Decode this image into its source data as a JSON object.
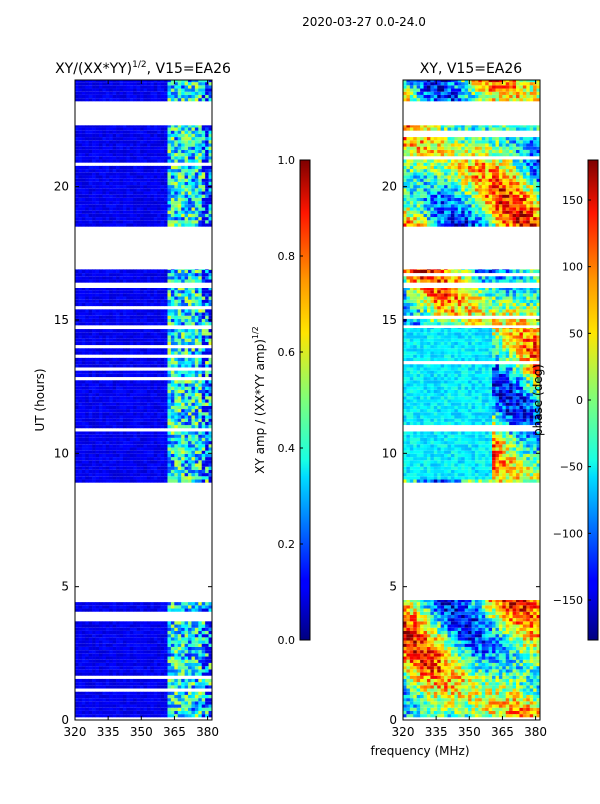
{
  "figure": {
    "suptitle": "2020-03-27 0.0-24.0",
    "xlabel": "frequency (MHz)"
  },
  "chart_data": [
    {
      "type": "heatmap",
      "title_main": "XY/(XX*YY)",
      "title_sup": "1/2",
      "title_tail": ", V15=EA26",
      "ylabel": "UT (hours)",
      "xlim": [
        320,
        382
      ],
      "ylim": [
        0,
        24
      ],
      "xticks": [
        "320",
        "335",
        "350",
        "365",
        "380"
      ],
      "xtick_values": [
        320,
        335,
        350,
        365,
        380
      ],
      "yticks": [
        "0",
        "5",
        "10",
        "15",
        "20"
      ],
      "ytick_values": [
        0,
        5,
        10,
        15,
        20
      ],
      "data_rows_ut": [
        [
          0.1,
          4.5
        ],
        [
          8.9,
          14.7
        ],
        [
          14.8,
          16.2
        ],
        [
          16.4,
          16.9
        ],
        [
          18.5,
          22.3
        ],
        [
          23.2,
          24.0
        ]
      ],
      "colorbar": {
        "label_main": "XY amp / (XX*YY amp)",
        "label_sup": "1/2",
        "range": [
          0.0,
          1.0
        ],
        "ticks": [
          "0.0",
          "0.2",
          "0.4",
          "0.6",
          "0.8",
          "1.0"
        ],
        "tick_values": [
          0.0,
          0.2,
          0.4,
          0.6,
          0.8,
          1.0
        ]
      }
    },
    {
      "type": "heatmap",
      "title": "XY, V15=EA26",
      "ylabel": "",
      "xlim": [
        320,
        382
      ],
      "ylim": [
        0,
        24
      ],
      "xticks": [
        "320",
        "335",
        "350",
        "365",
        "380"
      ],
      "xtick_values": [
        320,
        335,
        350,
        365,
        380
      ],
      "yticks": [
        "0",
        "5",
        "10",
        "15",
        "20"
      ],
      "ytick_values": [
        0,
        5,
        10,
        15,
        20
      ],
      "data_rows_ut": [
        [
          0.1,
          4.5
        ],
        [
          8.9,
          14.7
        ],
        [
          14.8,
          16.2
        ],
        [
          16.4,
          16.9
        ],
        [
          18.5,
          22.3
        ],
        [
          23.2,
          24.0
        ]
      ],
      "colorbar": {
        "label": "phase (deg)",
        "range": [
          -180,
          180
        ],
        "ticks": [
          "−150",
          "−100",
          "−50",
          "0",
          "50",
          "100",
          "150"
        ],
        "tick_values": [
          -150,
          -100,
          -50,
          0,
          50,
          100,
          150
        ]
      }
    }
  ]
}
